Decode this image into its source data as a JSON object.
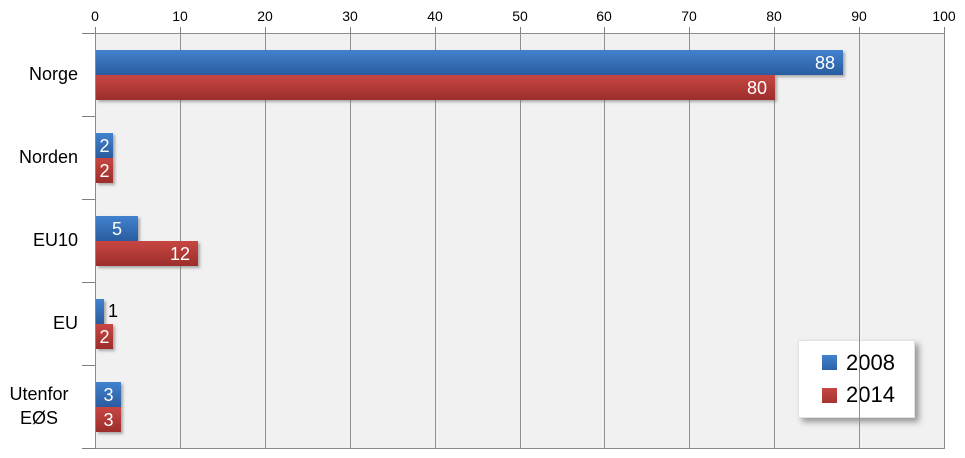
{
  "chart_data": {
    "type": "bar",
    "orientation": "horizontal",
    "title": "",
    "categories": [
      "Norge",
      "Norden",
      "EU10",
      "EU",
      "Utenfor EØS"
    ],
    "series": [
      {
        "name": "2008",
        "color": "#3A74BC",
        "values": [
          88,
          2,
          5,
          1,
          3
        ]
      },
      {
        "name": "2014",
        "color": "#B8403C",
        "values": [
          80,
          2,
          12,
          2,
          3
        ]
      }
    ],
    "xlim": [
      0,
      100
    ],
    "x_ticks": [
      0,
      10,
      20,
      30,
      40,
      50,
      60,
      70,
      80,
      90,
      100
    ],
    "grid": true,
    "legend_position": "bottom-right",
    "colors": {
      "series_2008": "#3A74BC",
      "series_2014": "#B8403C",
      "plot_background": "#F1F1F1",
      "gridline": "#8F8F8F",
      "axis_line": "#7F7F7F",
      "data_label_inside": "#FFFFFF",
      "data_label_outside": "#000000"
    }
  }
}
